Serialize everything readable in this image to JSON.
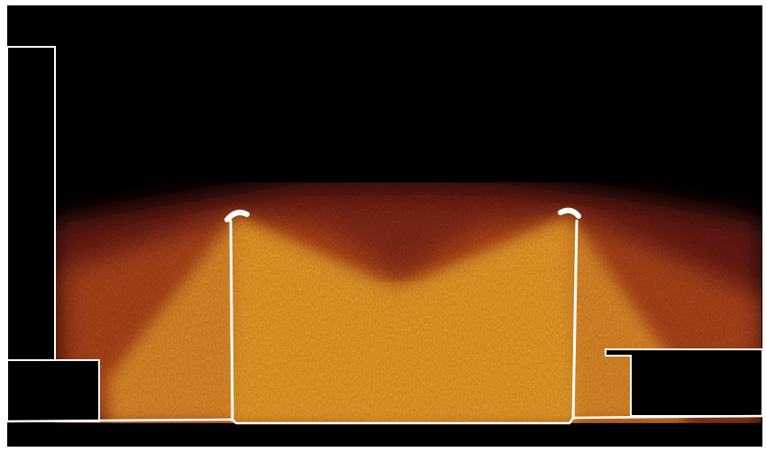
{
  "figure": {
    "colors": {
      "background": "#000000",
      "outline": "#ffffff",
      "frame": "#ffffff",
      "glow_inner": "#f4a32a",
      "glow_mid": "#c8621c",
      "glow_outer": "#6e1a12",
      "lamp": "#ffffff"
    },
    "elements": [
      "left-wall",
      "left-step",
      "right-step",
      "left-lamp-pole",
      "right-lamp-pole",
      "floor-line",
      "light-field"
    ]
  }
}
